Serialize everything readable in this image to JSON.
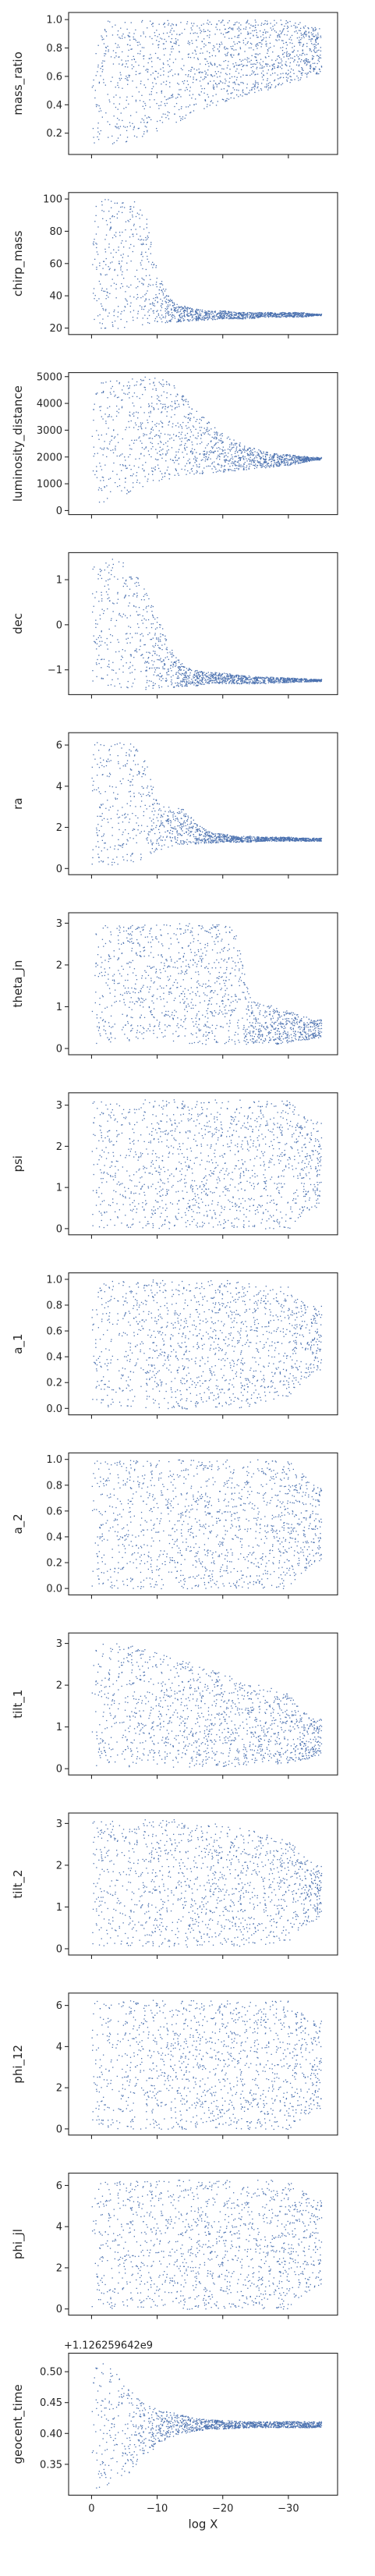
{
  "colors": {
    "points": "#4c72b0",
    "axes": "#262626",
    "background": "#ffffff"
  },
  "chart_data": [
    {
      "type": "scatter",
      "ylabel": "mass_ratio",
      "ylim": [
        0.05,
        1.05
      ],
      "yticks": [
        {
          "v": 0.2,
          "label": "0.2"
        },
        {
          "v": 0.4,
          "label": "0.4"
        },
        {
          "v": 0.6,
          "label": "0.6"
        },
        {
          "v": 0.8,
          "label": "0.8"
        },
        {
          "v": 1.0,
          "label": "1.0"
        }
      ],
      "x": [
        0,
        -2,
        -4,
        -6,
        -8,
        -10,
        -12,
        -14,
        -16,
        -18,
        -20,
        -22,
        -24,
        -26,
        -28,
        -30,
        -32,
        -34
      ],
      "y_low": [
        0.12,
        0.12,
        0.13,
        0.15,
        0.18,
        0.22,
        0.26,
        0.3,
        0.34,
        0.38,
        0.42,
        0.45,
        0.48,
        0.5,
        0.52,
        0.55,
        0.58,
        0.62
      ],
      "y_high": [
        1.0,
        1.0,
        1.0,
        1.0,
        1.0,
        1.0,
        1.0,
        1.0,
        1.0,
        1.0,
        1.0,
        1.0,
        1.0,
        1.0,
        1.0,
        1.0,
        0.98,
        0.95
      ]
    },
    {
      "type": "scatter",
      "ylabel": "chirp_mass",
      "ylim": [
        16,
        104
      ],
      "yticks": [
        {
          "v": 20,
          "label": "20"
        },
        {
          "v": 40,
          "label": "40"
        },
        {
          "v": 60,
          "label": "60"
        },
        {
          "v": 80,
          "label": "80"
        },
        {
          "v": 100,
          "label": "100"
        }
      ],
      "x": [
        0,
        -2,
        -4,
        -6,
        -8,
        -10,
        -12,
        -14,
        -16,
        -18,
        -20,
        -22,
        -24,
        -26,
        -28,
        -30,
        -32,
        -34
      ],
      "y_low": [
        20,
        20,
        20,
        21,
        22,
        23,
        24,
        24,
        25,
        25,
        26,
        26,
        26,
        27,
        27,
        27,
        27,
        28
      ],
      "y_high": [
        100,
        100,
        100,
        100,
        95,
        55,
        38,
        34,
        32,
        31,
        31,
        30,
        30,
        30,
        30,
        30,
        30,
        29
      ]
    },
    {
      "type": "scatter",
      "ylabel": "luminosity_distance",
      "ylim": [
        -150,
        5150
      ],
      "yticks": [
        {
          "v": 0,
          "label": "0"
        },
        {
          "v": 1000,
          "label": "1000"
        },
        {
          "v": 2000,
          "label": "2000"
        },
        {
          "v": 3000,
          "label": "3000"
        },
        {
          "v": 4000,
          "label": "4000"
        },
        {
          "v": 5000,
          "label": "5000"
        }
      ],
      "x": [
        0,
        -2,
        -4,
        -6,
        -8,
        -10,
        -12,
        -14,
        -16,
        -18,
        -20,
        -22,
        -24,
        -26,
        -28,
        -30,
        -32,
        -34
      ],
      "y_low": [
        200,
        300,
        500,
        700,
        900,
        1100,
        1200,
        1300,
        1350,
        1400,
        1450,
        1500,
        1550,
        1600,
        1650,
        1700,
        1800,
        1900
      ],
      "y_high": [
        4500,
        5000,
        5000,
        5000,
        5000,
        5000,
        4800,
        4300,
        3800,
        3300,
        2900,
        2600,
        2400,
        2250,
        2150,
        2100,
        2050,
        2000
      ]
    },
    {
      "type": "scatter",
      "ylabel": "dec",
      "ylim": [
        -1.55,
        1.6
      ],
      "yticks": [
        {
          "v": -1,
          "label": "−1"
        },
        {
          "v": 0,
          "label": "0"
        },
        {
          "v": 1,
          "label": "1"
        }
      ],
      "x": [
        0,
        -2,
        -4,
        -6,
        -8,
        -10,
        -12,
        -14,
        -16,
        -18,
        -20,
        -22,
        -24,
        -26,
        -28,
        -30,
        -32,
        -34
      ],
      "y_low": [
        -1.3,
        -1.4,
        -1.45,
        -1.45,
        -1.45,
        -1.4,
        -1.4,
        -1.35,
        -1.35,
        -1.3,
        -1.3,
        -1.3,
        -1.3,
        -1.3,
        -1.28,
        -1.27,
        -1.26,
        -1.25
      ],
      "y_high": [
        1.3,
        1.5,
        1.5,
        1.3,
        0.9,
        0.2,
        -0.5,
        -0.9,
        -1.0,
        -1.05,
        -1.05,
        -1.1,
        -1.12,
        -1.15,
        -1.15,
        -1.17,
        -1.18,
        -1.2
      ]
    },
    {
      "type": "scatter",
      "ylabel": "ra",
      "ylim": [
        -0.3,
        6.6
      ],
      "yticks": [
        {
          "v": 0,
          "label": "0"
        },
        {
          "v": 2,
          "label": "2"
        },
        {
          "v": 4,
          "label": "4"
        },
        {
          "v": 6,
          "label": "6"
        }
      ],
      "x": [
        0,
        -2,
        -4,
        -6,
        -8,
        -10,
        -12,
        -14,
        -16,
        -18,
        -20,
        -22,
        -24,
        -26,
        -28,
        -30,
        -32,
        -34
      ],
      "y_low": [
        0.1,
        0.1,
        0.2,
        0.3,
        0.5,
        0.9,
        1.1,
        1.2,
        1.2,
        1.25,
        1.3,
        1.3,
        1.3,
        1.35,
        1.35,
        1.35,
        1.35,
        1.35
      ],
      "y_high": [
        6.2,
        6.2,
        6.2,
        6.1,
        5.5,
        3.2,
        3.0,
        2.9,
        2.2,
        1.8,
        1.7,
        1.6,
        1.6,
        1.55,
        1.55,
        1.55,
        1.5,
        1.5
      ]
    },
    {
      "type": "scatter",
      "ylabel": "theta_jn",
      "ylim": [
        -0.15,
        3.25
      ],
      "yticks": [
        {
          "v": 0,
          "label": "0"
        },
        {
          "v": 1,
          "label": "1"
        },
        {
          "v": 2,
          "label": "2"
        },
        {
          "v": 3,
          "label": "3"
        }
      ],
      "x": [
        0,
        -2,
        -4,
        -6,
        -8,
        -10,
        -12,
        -14,
        -16,
        -18,
        -20,
        -22,
        -24,
        -26,
        -28,
        -30,
        -32,
        -34
      ],
      "y_low": [
        0.1,
        0.1,
        0.15,
        0.2,
        0.2,
        0.2,
        0.2,
        0.15,
        0.1,
        0.1,
        0.1,
        0.1,
        0.1,
        0.1,
        0.1,
        0.15,
        0.2,
        0.25
      ],
      "y_high": [
        2.9,
        3.0,
        3.0,
        3.0,
        3.0,
        3.0,
        3.0,
        3.0,
        3.0,
        3.0,
        3.0,
        2.9,
        1.3,
        1.1,
        1.0,
        0.9,
        0.8,
        0.7
      ]
    },
    {
      "type": "scatter",
      "ylabel": "psi",
      "ylim": [
        -0.15,
        3.3
      ],
      "yticks": [
        {
          "v": 0,
          "label": "0"
        },
        {
          "v": 1,
          "label": "1"
        },
        {
          "v": 2,
          "label": "2"
        },
        {
          "v": 3,
          "label": "3"
        }
      ],
      "x": [
        0,
        -2,
        -4,
        -6,
        -8,
        -10,
        -12,
        -14,
        -16,
        -18,
        -20,
        -22,
        -24,
        -26,
        -28,
        -30,
        -32,
        -34
      ],
      "y_low": [
        0.0,
        0.0,
        0.0,
        0.0,
        0.0,
        0.0,
        0.0,
        0.0,
        0.0,
        0.0,
        0.0,
        0.0,
        0.0,
        0.0,
        0.0,
        0.0,
        0.3,
        0.5
      ],
      "y_high": [
        3.14,
        3.14,
        3.14,
        3.14,
        3.14,
        3.14,
        3.14,
        3.14,
        3.14,
        3.14,
        3.14,
        3.14,
        3.14,
        3.14,
        3.14,
        3.14,
        2.8,
        2.6
      ]
    },
    {
      "type": "scatter",
      "ylabel": "a_1",
      "ylim": [
        -0.05,
        1.05
      ],
      "yticks": [
        {
          "v": 0.0,
          "label": "0.0"
        },
        {
          "v": 0.2,
          "label": "0.2"
        },
        {
          "v": 0.4,
          "label": "0.4"
        },
        {
          "v": 0.6,
          "label": "0.6"
        },
        {
          "v": 0.8,
          "label": "0.8"
        },
        {
          "v": 1.0,
          "label": "1.0"
        }
      ],
      "x": [
        0,
        -2,
        -4,
        -6,
        -8,
        -10,
        -12,
        -14,
        -16,
        -18,
        -20,
        -22,
        -24,
        -26,
        -28,
        -30,
        -32,
        -34
      ],
      "y_low": [
        0.0,
        0.0,
        0.0,
        0.0,
        0.0,
        0.0,
        0.0,
        0.0,
        0.0,
        0.0,
        0.0,
        0.0,
        0.02,
        0.05,
        0.08,
        0.1,
        0.2,
        0.3
      ],
      "y_high": [
        1.0,
        1.0,
        1.0,
        1.0,
        1.0,
        1.0,
        1.0,
        1.0,
        1.0,
        1.0,
        1.0,
        1.0,
        0.99,
        0.98,
        0.95,
        0.95,
        0.85,
        0.8
      ]
    },
    {
      "type": "scatter",
      "ylabel": "a_2",
      "ylim": [
        -0.05,
        1.05
      ],
      "yticks": [
        {
          "v": 0.0,
          "label": "0.0"
        },
        {
          "v": 0.2,
          "label": "0.2"
        },
        {
          "v": 0.4,
          "label": "0.4"
        },
        {
          "v": 0.6,
          "label": "0.6"
        },
        {
          "v": 0.8,
          "label": "0.8"
        },
        {
          "v": 1.0,
          "label": "1.0"
        }
      ],
      "x": [
        0,
        -2,
        -4,
        -6,
        -8,
        -10,
        -12,
        -14,
        -16,
        -18,
        -20,
        -22,
        -24,
        -26,
        -28,
        -30,
        -32,
        -34
      ],
      "y_low": [
        0.0,
        0.0,
        0.0,
        0.0,
        0.0,
        0.0,
        0.0,
        0.0,
        0.0,
        0.0,
        0.0,
        0.0,
        0.0,
        0.0,
        0.0,
        0.0,
        0.1,
        0.2
      ],
      "y_high": [
        1.0,
        1.0,
        1.0,
        1.0,
        1.0,
        1.0,
        1.0,
        1.0,
        1.0,
        1.0,
        1.0,
        1.0,
        1.0,
        1.0,
        1.0,
        1.0,
        0.9,
        0.8
      ]
    },
    {
      "type": "scatter",
      "ylabel": "tilt_1",
      "ylim": [
        -0.15,
        3.25
      ],
      "yticks": [
        {
          "v": 0,
          "label": "0"
        },
        {
          "v": 1,
          "label": "1"
        },
        {
          "v": 2,
          "label": "2"
        },
        {
          "v": 3,
          "label": "3"
        }
      ],
      "x": [
        0,
        -2,
        -4,
        -6,
        -8,
        -10,
        -12,
        -14,
        -16,
        -18,
        -20,
        -22,
        -24,
        -26,
        -28,
        -30,
        -32,
        -34
      ],
      "y_low": [
        0.05,
        0.05,
        0.05,
        0.05,
        0.05,
        0.05,
        0.05,
        0.05,
        0.05,
        0.05,
        0.05,
        0.05,
        0.1,
        0.1,
        0.1,
        0.15,
        0.2,
        0.3
      ],
      "y_high": [
        3.0,
        3.1,
        3.1,
        3.0,
        2.9,
        2.8,
        2.7,
        2.6,
        2.5,
        2.4,
        2.3,
        2.2,
        2.1,
        2.0,
        1.9,
        1.8,
        1.4,
        1.2
      ]
    },
    {
      "type": "scatter",
      "ylabel": "tilt_2",
      "ylim": [
        -0.15,
        3.25
      ],
      "yticks": [
        {
          "v": 0,
          "label": "0"
        },
        {
          "v": 1,
          "label": "1"
        },
        {
          "v": 2,
          "label": "2"
        },
        {
          "v": 3,
          "label": "3"
        }
      ],
      "x": [
        0,
        -2,
        -4,
        -6,
        -8,
        -10,
        -12,
        -14,
        -16,
        -18,
        -20,
        -22,
        -24,
        -26,
        -28,
        -30,
        -32,
        -34
      ],
      "y_low": [
        0.05,
        0.05,
        0.05,
        0.05,
        0.05,
        0.05,
        0.05,
        0.05,
        0.05,
        0.05,
        0.05,
        0.05,
        0.1,
        0.1,
        0.15,
        0.2,
        0.5,
        0.7
      ],
      "y_high": [
        3.1,
        3.1,
        3.1,
        3.1,
        3.1,
        3.1,
        3.1,
        3.1,
        3.0,
        3.0,
        3.0,
        2.9,
        2.9,
        2.8,
        2.7,
        2.6,
        2.3,
        2.0
      ]
    },
    {
      "type": "scatter",
      "ylabel": "phi_12",
      "ylim": [
        -0.3,
        6.6
      ],
      "yticks": [
        {
          "v": 0,
          "label": "0"
        },
        {
          "v": 2,
          "label": "2"
        },
        {
          "v": 4,
          "label": "4"
        },
        {
          "v": 6,
          "label": "6"
        }
      ],
      "x": [
        0,
        -2,
        -4,
        -6,
        -8,
        -10,
        -12,
        -14,
        -16,
        -18,
        -20,
        -22,
        -24,
        -26,
        -28,
        -30,
        -32,
        -34
      ],
      "y_low": [
        0.0,
        0.0,
        0.0,
        0.0,
        0.0,
        0.0,
        0.0,
        0.0,
        0.0,
        0.0,
        0.0,
        0.0,
        0.0,
        0.0,
        0.0,
        0.0,
        0.5,
        1.0
      ],
      "y_high": [
        6.28,
        6.28,
        6.28,
        6.28,
        6.28,
        6.28,
        6.28,
        6.28,
        6.28,
        6.28,
        6.28,
        6.28,
        6.28,
        6.28,
        6.28,
        6.28,
        5.8,
        5.3
      ]
    },
    {
      "type": "scatter",
      "ylabel": "phi_jl",
      "ylim": [
        -0.3,
        6.6
      ],
      "yticks": [
        {
          "v": 0,
          "label": "0"
        },
        {
          "v": 2,
          "label": "2"
        },
        {
          "v": 4,
          "label": "4"
        },
        {
          "v": 6,
          "label": "6"
        }
      ],
      "x": [
        0,
        -2,
        -4,
        -6,
        -8,
        -10,
        -12,
        -14,
        -16,
        -18,
        -20,
        -22,
        -24,
        -26,
        -28,
        -30,
        -32,
        -34
      ],
      "y_low": [
        0.0,
        0.0,
        0.0,
        0.0,
        0.0,
        0.0,
        0.0,
        0.0,
        0.0,
        0.0,
        0.0,
        0.0,
        0.0,
        0.0,
        0.0,
        0.0,
        0.5,
        1.0
      ],
      "y_high": [
        6.28,
        6.28,
        6.28,
        6.28,
        6.28,
        6.28,
        6.28,
        6.28,
        6.28,
        6.28,
        6.28,
        6.28,
        6.28,
        6.28,
        6.28,
        6.28,
        5.8,
        5.3
      ]
    },
    {
      "type": "scatter",
      "ylabel": "geocent_time",
      "xlabel": "log X",
      "offset_text": "+1.126259642e9",
      "ylim": [
        0.3,
        0.53
      ],
      "yticks": [
        {
          "v": 0.35,
          "label": "0.35"
        },
        {
          "v": 0.4,
          "label": "0.40"
        },
        {
          "v": 0.45,
          "label": "0.45"
        },
        {
          "v": 0.5,
          "label": "0.50"
        }
      ],
      "xticks": [
        {
          "v": 0,
          "label": "0"
        },
        {
          "v": -10,
          "label": "−10"
        },
        {
          "v": -20,
          "label": "−20"
        },
        {
          "v": -30,
          "label": "−30"
        }
      ],
      "x": [
        0,
        -2,
        -4,
        -6,
        -8,
        -10,
        -12,
        -14,
        -16,
        -18,
        -20,
        -22,
        -24,
        -26,
        -28,
        -30,
        -32,
        -34
      ],
      "y_low": [
        0.31,
        0.31,
        0.32,
        0.34,
        0.36,
        0.38,
        0.395,
        0.4,
        0.405,
        0.407,
        0.408,
        0.409,
        0.41,
        0.41,
        0.41,
        0.41,
        0.41,
        0.41
      ],
      "y_high": [
        0.52,
        0.52,
        0.5,
        0.47,
        0.45,
        0.44,
        0.435,
        0.43,
        0.425,
        0.423,
        0.422,
        0.421,
        0.42,
        0.42,
        0.42,
        0.42,
        0.42,
        0.42
      ]
    }
  ]
}
